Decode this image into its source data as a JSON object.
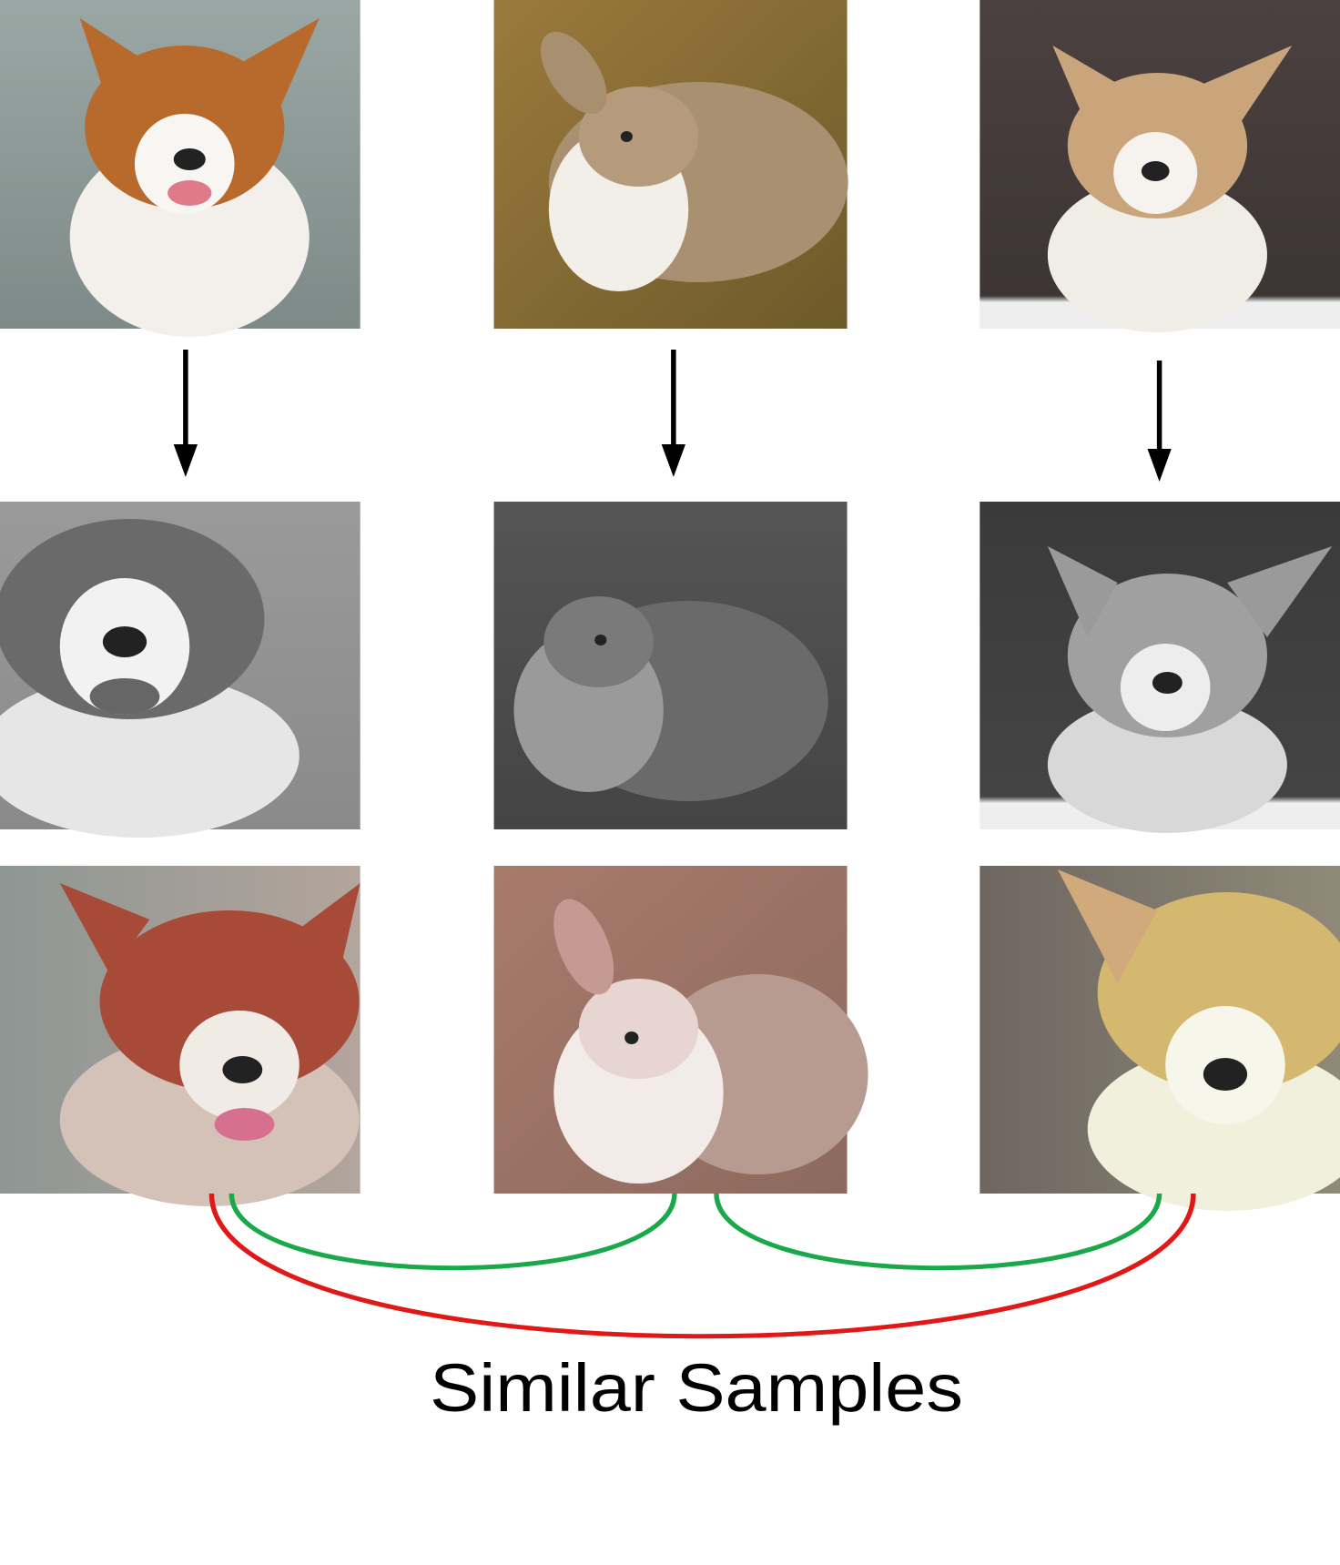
{
  "caption": "Similar Samples"
}
